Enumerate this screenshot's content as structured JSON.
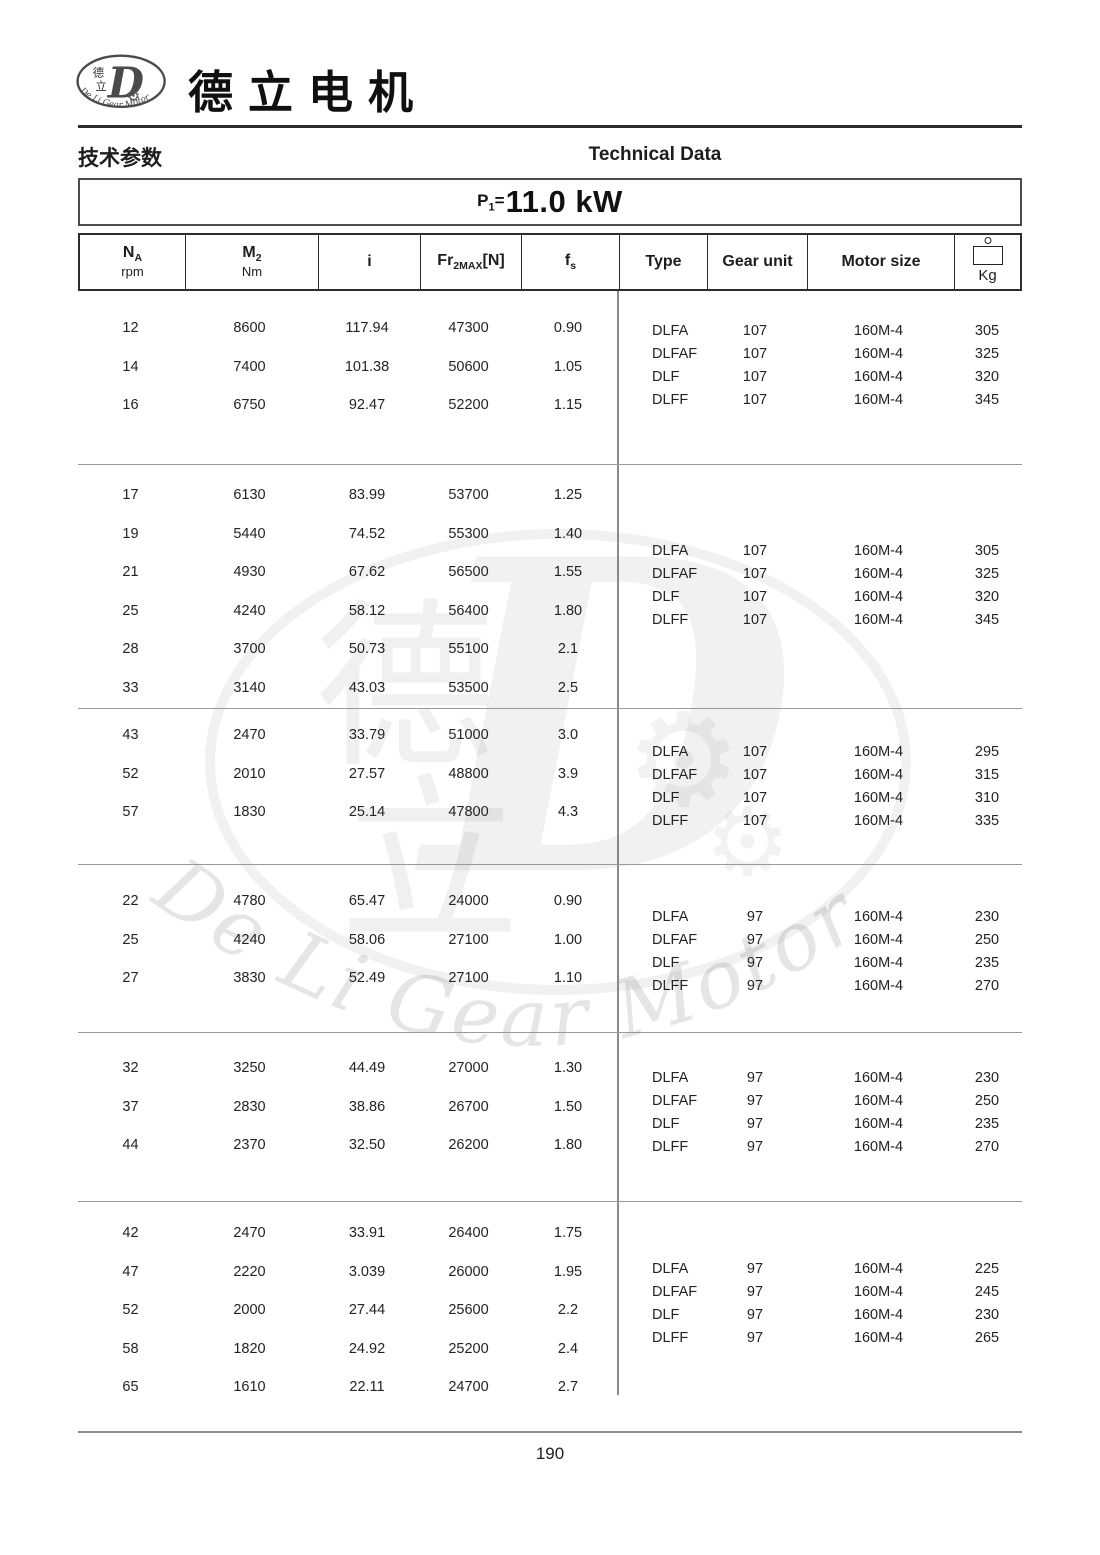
{
  "header": {
    "brand": "德立电机",
    "section_title_cn": "技术参数",
    "section_title_en": "Technical Data",
    "logo": {
      "cn_top": "德",
      "cn_bottom": "立",
      "letter": "D",
      "ring_text": "De Li Gear Motor"
    }
  },
  "power": {
    "sym": "P",
    "sub": "1",
    "eq": "=",
    "value": "11.0 kW"
  },
  "table": {
    "headers": {
      "na": {
        "sym": "N",
        "sub": "A",
        "unit": "rpm"
      },
      "m2": {
        "sym": "M",
        "sub": "2",
        "unit": "Nm"
      },
      "i": "i",
      "fr": {
        "sym": "Fr",
        "sub": "2MAX",
        "suffix": "[N]"
      },
      "fs": {
        "sym": "f",
        "sub": "s"
      },
      "type": "Type",
      "gear_unit": "Gear unit",
      "motor_size": "Motor size",
      "kg": "Kg"
    },
    "groups": [
      {
        "rows": [
          {
            "na": "12",
            "m2": "8600",
            "i": "117.94",
            "fr": "47300",
            "fs": "0.90"
          },
          {
            "na": "14",
            "m2": "7400",
            "i": "101.38",
            "fr": "50600",
            "fs": "1.05"
          },
          {
            "na": "16",
            "m2": "6750",
            "i": "92.47",
            "fr": "52200",
            "fs": "1.15"
          }
        ],
        "variants": [
          {
            "type": "DLFA",
            "gear": "107",
            "motor": "160M-4",
            "kg": "305"
          },
          {
            "type": "DLFAF",
            "gear": "107",
            "motor": "160M-4",
            "kg": "325"
          },
          {
            "type": "DLF",
            "gear": "107",
            "motor": "160M-4",
            "kg": "320"
          },
          {
            "type": "DLFF",
            "gear": "107",
            "motor": "160M-4",
            "kg": "345"
          }
        ]
      },
      {
        "rows": [
          {
            "na": "17",
            "m2": "6130",
            "i": "83.99",
            "fr": "53700",
            "fs": "1.25"
          },
          {
            "na": "19",
            "m2": "5440",
            "i": "74.52",
            "fr": "55300",
            "fs": "1.40"
          },
          {
            "na": "21",
            "m2": "4930",
            "i": "67.62",
            "fr": "56500",
            "fs": "1.55"
          },
          {
            "na": "25",
            "m2": "4240",
            "i": "58.12",
            "fr": "56400",
            "fs": "1.80"
          },
          {
            "na": "28",
            "m2": "3700",
            "i": "50.73",
            "fr": "55100",
            "fs": "2.1"
          },
          {
            "na": "33",
            "m2": "3140",
            "i": "43.03",
            "fr": "53500",
            "fs": "2.5"
          }
        ],
        "variants": [
          {
            "type": "DLFA",
            "gear": "107",
            "motor": "160M-4",
            "kg": "305"
          },
          {
            "type": "DLFAF",
            "gear": "107",
            "motor": "160M-4",
            "kg": "325"
          },
          {
            "type": "DLF",
            "gear": "107",
            "motor": "160M-4",
            "kg": "320"
          },
          {
            "type": "DLFF",
            "gear": "107",
            "motor": "160M-4",
            "kg": "345"
          }
        ]
      },
      {
        "rows": [
          {
            "na": "43",
            "m2": "2470",
            "i": "33.79",
            "fr": "51000",
            "fs": "3.0"
          },
          {
            "na": "52",
            "m2": "2010",
            "i": "27.57",
            "fr": "48800",
            "fs": "3.9"
          },
          {
            "na": "57",
            "m2": "1830",
            "i": "25.14",
            "fr": "47800",
            "fs": "4.3"
          }
        ],
        "variants": [
          {
            "type": "DLFA",
            "gear": "107",
            "motor": "160M-4",
            "kg": "295"
          },
          {
            "type": "DLFAF",
            "gear": "107",
            "motor": "160M-4",
            "kg": "315"
          },
          {
            "type": "DLF",
            "gear": "107",
            "motor": "160M-4",
            "kg": "310"
          },
          {
            "type": "DLFF",
            "gear": "107",
            "motor": "160M-4",
            "kg": "335"
          }
        ]
      },
      {
        "rows": [
          {
            "na": "22",
            "m2": "4780",
            "i": "65.47",
            "fr": "24000",
            "fs": "0.90"
          },
          {
            "na": "25",
            "m2": "4240",
            "i": "58.06",
            "fr": "27100",
            "fs": "1.00"
          },
          {
            "na": "27",
            "m2": "3830",
            "i": "52.49",
            "fr": "27100",
            "fs": "1.10"
          }
        ],
        "variants": [
          {
            "type": "DLFA",
            "gear": "97",
            "motor": "160M-4",
            "kg": "230"
          },
          {
            "type": "DLFAF",
            "gear": "97",
            "motor": "160M-4",
            "kg": "250"
          },
          {
            "type": "DLF",
            "gear": "97",
            "motor": "160M-4",
            "kg": "235"
          },
          {
            "type": "DLFF",
            "gear": "97",
            "motor": "160M-4",
            "kg": "270"
          }
        ]
      },
      {
        "rows": [
          {
            "na": "32",
            "m2": "3250",
            "i": "44.49",
            "fr": "27000",
            "fs": "1.30"
          },
          {
            "na": "37",
            "m2": "2830",
            "i": "38.86",
            "fr": "26700",
            "fs": "1.50"
          },
          {
            "na": "44",
            "m2": "2370",
            "i": "32.50",
            "fr": "26200",
            "fs": "1.80"
          }
        ],
        "variants": [
          {
            "type": "DLFA",
            "gear": "97",
            "motor": "160M-4",
            "kg": "230"
          },
          {
            "type": "DLFAF",
            "gear": "97",
            "motor": "160M-4",
            "kg": "250"
          },
          {
            "type": "DLF",
            "gear": "97",
            "motor": "160M-4",
            "kg": "235"
          },
          {
            "type": "DLFF",
            "gear": "97",
            "motor": "160M-4",
            "kg": "270"
          }
        ]
      },
      {
        "rows": [
          {
            "na": "42",
            "m2": "2470",
            "i": "33.91",
            "fr": "26400",
            "fs": "1.75"
          },
          {
            "na": "47",
            "m2": "2220",
            "i": "3.039",
            "fr": "26000",
            "fs": "1.95"
          },
          {
            "na": "52",
            "m2": "2000",
            "i": "27.44",
            "fr": "25600",
            "fs": "2.2"
          },
          {
            "na": "58",
            "m2": "1820",
            "i": "24.92",
            "fr": "25200",
            "fs": "2.4"
          },
          {
            "na": "65",
            "m2": "1610",
            "i": "22.11",
            "fr": "24700",
            "fs": "2.7"
          }
        ],
        "variants": [
          {
            "type": "DLFA",
            "gear": "97",
            "motor": "160M-4",
            "kg": "225"
          },
          {
            "type": "DLFAF",
            "gear": "97",
            "motor": "160M-4",
            "kg": "245"
          },
          {
            "type": "DLF",
            "gear": "97",
            "motor": "160M-4",
            "kg": "230"
          },
          {
            "type": "DLFF",
            "gear": "97",
            "motor": "160M-4",
            "kg": "265"
          }
        ]
      }
    ]
  },
  "watermark": {
    "ring_text": "De Li Gear Motor",
    "cn_top": "德",
    "cn_bottom": "立",
    "letter": "D"
  },
  "footer": {
    "page_number": "190"
  }
}
